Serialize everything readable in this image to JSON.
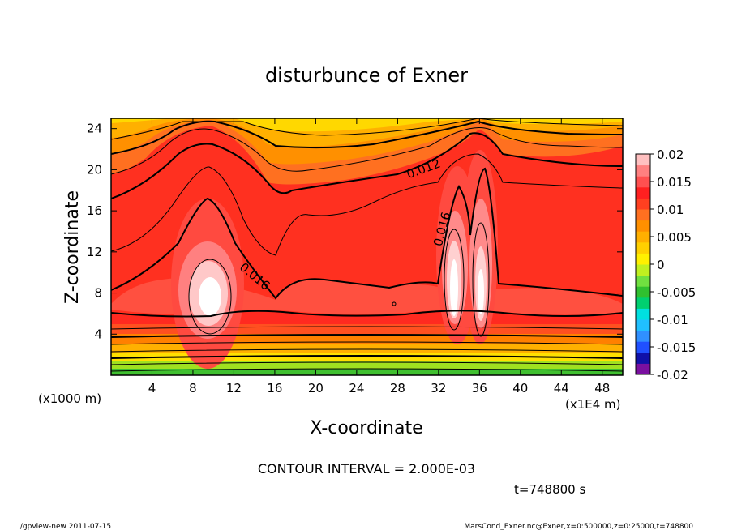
{
  "chart_data": {
    "type": "heatmap",
    "title": "disturbunce of Exner",
    "xlabel": "X-coordinate",
    "ylabel": "Z-coordinate",
    "x_unit_label": "(x1E4 m)",
    "y_unit_label": "(x1000 m)",
    "xlim": [
      0,
      50
    ],
    "ylim": [
      0,
      25
    ],
    "x_ticks": [
      4,
      8,
      12,
      16,
      20,
      24,
      28,
      32,
      36,
      40,
      44,
      48
    ],
    "y_ticks": [
      4,
      8,
      12,
      16,
      20,
      24
    ],
    "colorbar": {
      "range": [
        -0.02,
        0.02
      ],
      "tick_labels": [
        "0.02",
        "0.015",
        "0.01",
        "0.005",
        "0",
        "-0.005",
        "-0.01",
        "-0.015",
        "-0.02"
      ],
      "colors": [
        "#7a10a0",
        "#1010a8",
        "#2050ff",
        "#3090ff",
        "#20c0ff",
        "#00e0e0",
        "#00d070",
        "#30c030",
        "#70e040",
        "#c0f020",
        "#fff000",
        "#ffd000",
        "#ffb000",
        "#ff9000",
        "#ff7020",
        "#ff4020",
        "#ff2020",
        "#ff5050",
        "#ff8080",
        "#ffc0c0"
      ]
    },
    "contour_interval": "2.000E-03",
    "contour_labels": [
      {
        "text": "0.012",
        "x": 31.5,
        "z": 19.5
      },
      {
        "text": "0.016",
        "x": 33.5,
        "z": 14.3
      },
      {
        "text": "0.016",
        "x": 13.5,
        "z": 10.2
      }
    ],
    "features": [
      {
        "name": "maximum near x=8.5 (x1E4 m)",
        "x": 8.6,
        "z": 7.5,
        "value": 0.02
      },
      {
        "name": "maximum near x=33 (x1E4 m)",
        "x": 33.2,
        "z": 8.0,
        "value": 0.02
      },
      {
        "name": "maximum near x=36 (x1E4 m)",
        "x": 35.8,
        "z": 7.0,
        "value": 0.02
      }
    ]
  },
  "annotations": {
    "contour_interval_text": "CONTOUR INTERVAL = 2.000E-03",
    "time_text": "t=748800 s",
    "footer_left": "./gpview-new   2011-07-15",
    "footer_right": "MarsCond_Exner.nc@Exner,x=0:500000,z=0:25000,t=748800"
  }
}
